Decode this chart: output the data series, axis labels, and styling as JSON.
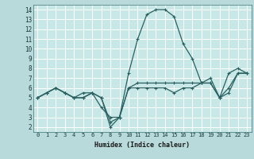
{
  "title": "",
  "xlabel": "Humidex (Indice chaleur)",
  "ylabel": "",
  "bg_color": "#b8dada",
  "plot_bg_color": "#c8e8e8",
  "grid_color": "#ffffff",
  "line_color": "#2a6060",
  "xlabel_bg": "#7aacac",
  "xlim": [
    -0.5,
    23.5
  ],
  "ylim": [
    1.5,
    14.5
  ],
  "xticks": [
    0,
    1,
    2,
    3,
    4,
    5,
    6,
    7,
    8,
    9,
    10,
    11,
    12,
    13,
    14,
    15,
    16,
    17,
    18,
    19,
    20,
    21,
    22,
    23
  ],
  "yticks": [
    2,
    3,
    4,
    5,
    6,
    7,
    8,
    9,
    10,
    11,
    12,
    13,
    14
  ],
  "series": [
    [
      5.0,
      5.5,
      6.0,
      5.5,
      5.0,
      5.5,
      5.5,
      4.0,
      3.0,
      3.0,
      7.5,
      11.0,
      13.5,
      14.0,
      14.0,
      13.3,
      10.5,
      9.0,
      6.5,
      6.5,
      5.0,
      7.5,
      8.0,
      7.5
    ],
    [
      5.0,
      5.5,
      6.0,
      5.5,
      5.0,
      5.0,
      5.5,
      5.0,
      2.5,
      3.0,
      6.0,
      6.0,
      6.0,
      6.0,
      6.0,
      5.5,
      6.0,
      6.0,
      6.5,
      6.5,
      5.0,
      5.5,
      7.5,
      7.5
    ],
    [
      5.0,
      5.5,
      6.0,
      5.5,
      5.0,
      5.0,
      5.5,
      5.0,
      2.0,
      3.0,
      6.0,
      6.5,
      6.5,
      6.5,
      6.5,
      6.5,
      6.5,
      6.5,
      6.5,
      7.0,
      5.0,
      6.0,
      7.5,
      7.5
    ]
  ]
}
